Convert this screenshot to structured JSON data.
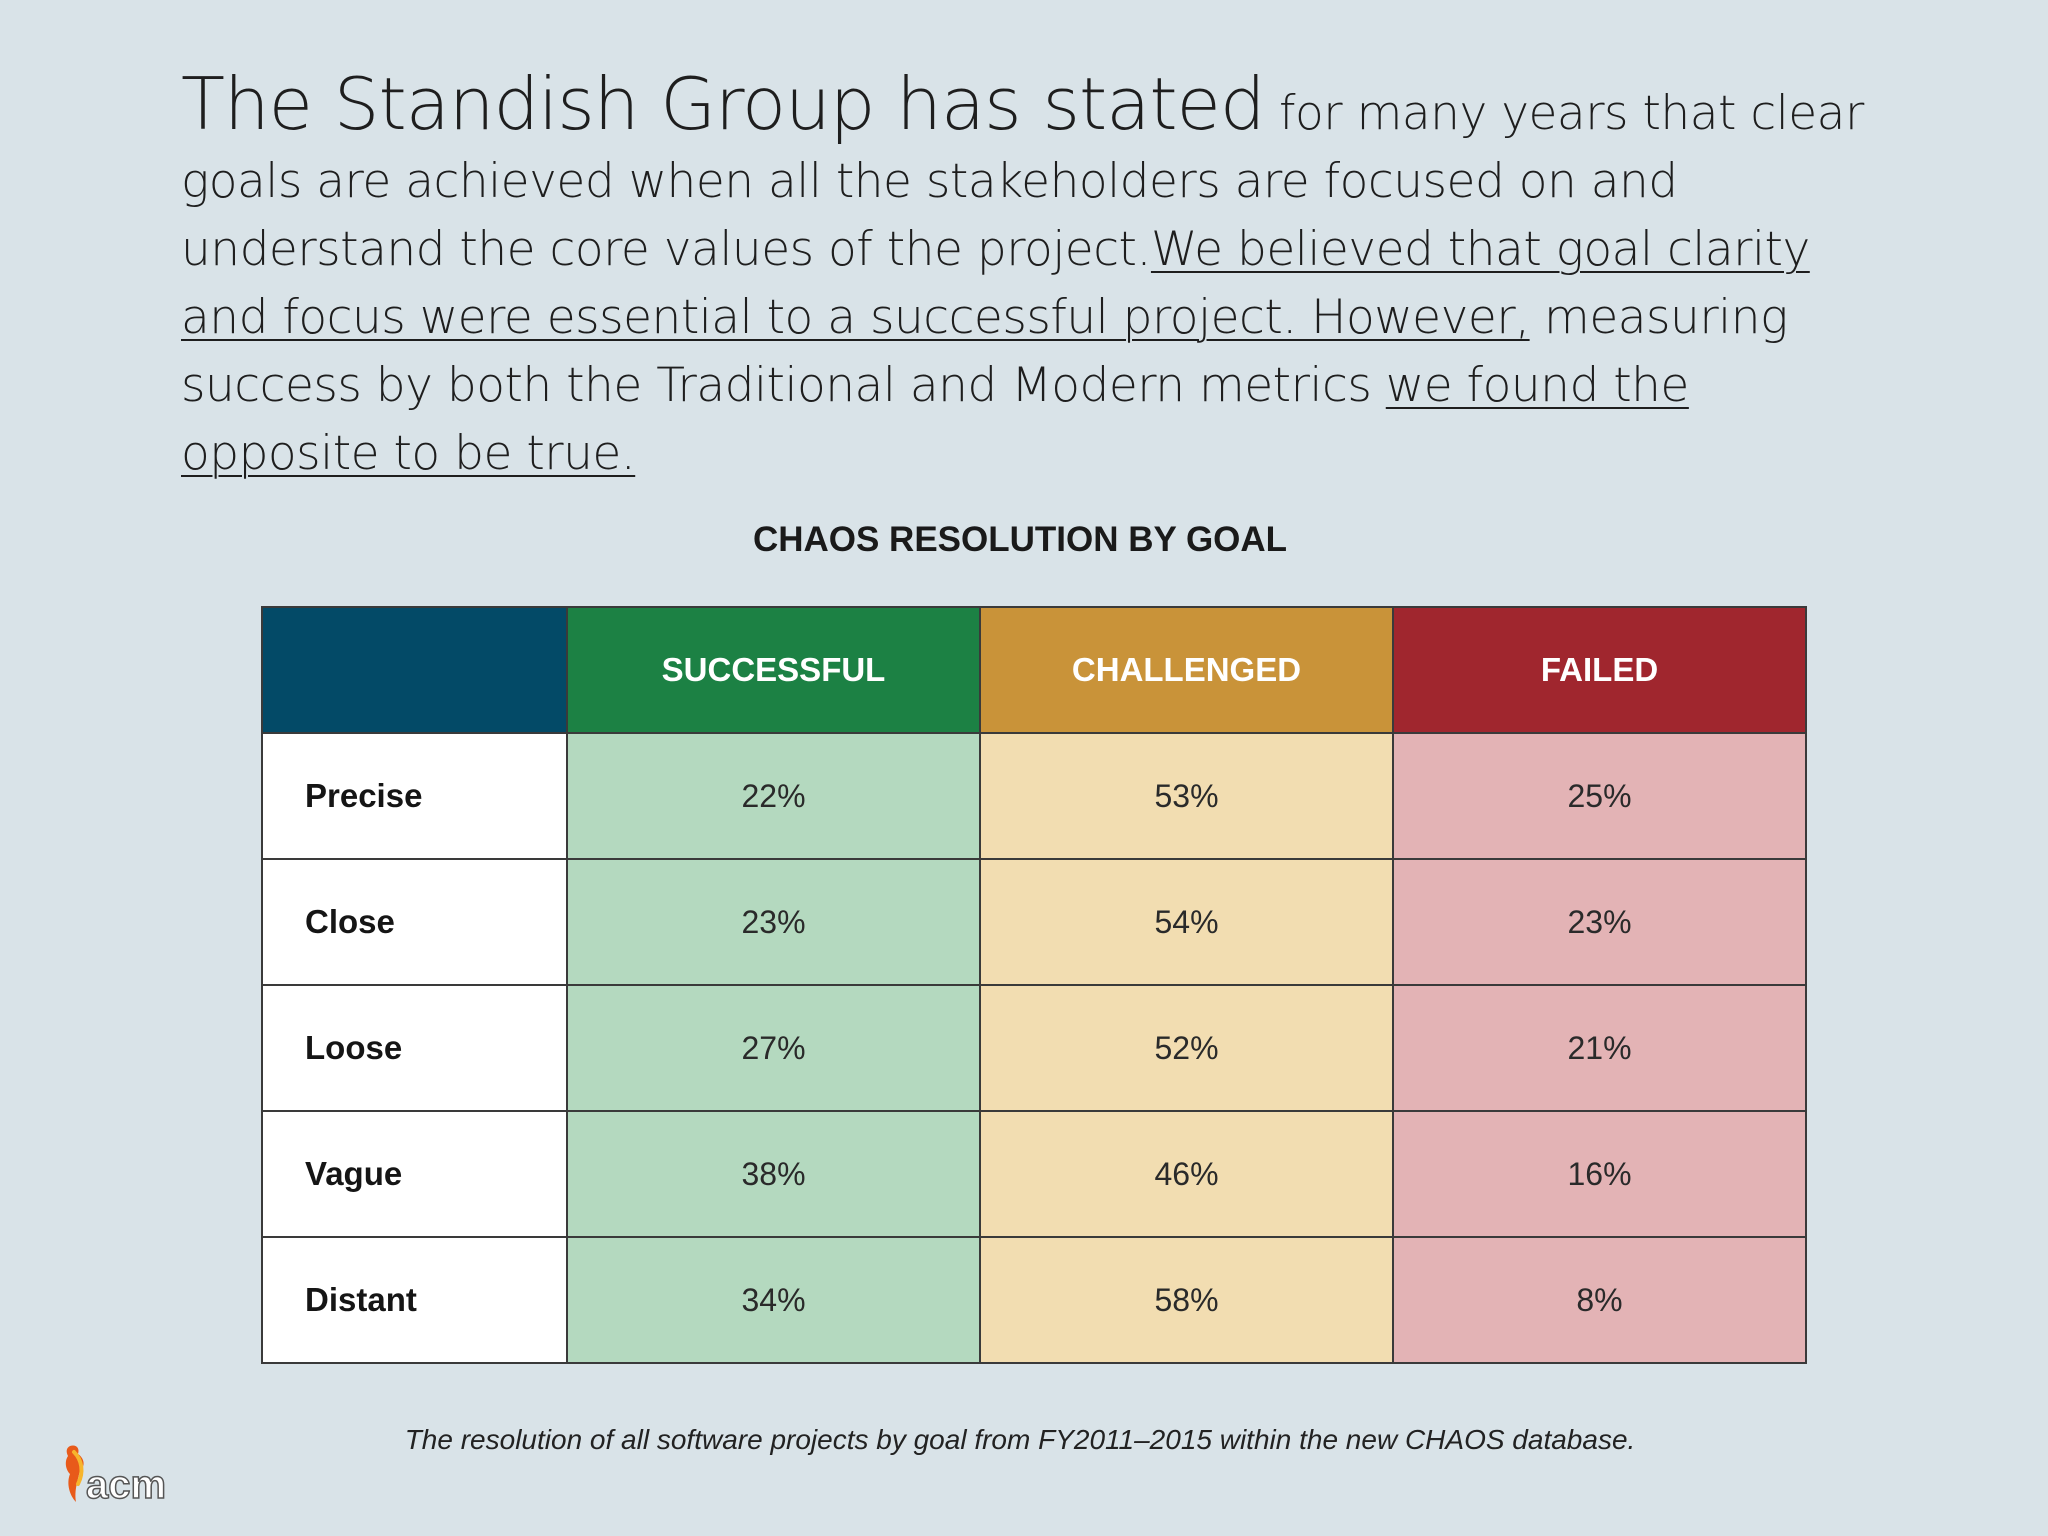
{
  "intro": {
    "lead": "The Standish Group has stated",
    "part1": " for many years that clear goals are achieved when all the stakeholders are focused on and understand the core values of the project.",
    "underline1": "We believed that goal clarity and focus were essential to a successful project. However,",
    "part2": " measuring success by both the Traditional and Modern metrics ",
    "underline2": "we found the opposite to be true."
  },
  "logo": {
    "text": "acm",
    "icon": "acm-logo-icon"
  },
  "colors": {
    "corner_header": "#034a67",
    "successful_header": "#1c8144",
    "challenged_header": "#c99339",
    "failed_header": "#a0262e",
    "successful_cell": "#b4d9bf",
    "challenged_cell": "#f2ddb1",
    "failed_cell": "#e3b3b5"
  },
  "chart_data": {
    "type": "table",
    "title": "CHAOS RESOLUTION BY GOAL",
    "columns": [
      "SUCCESSFUL",
      "CHALLENGED",
      "FAILED"
    ],
    "rows": [
      {
        "label": "Precise",
        "values": [
          "22%",
          "53%",
          "25%"
        ]
      },
      {
        "label": "Close",
        "values": [
          "23%",
          "54%",
          "23%"
        ]
      },
      {
        "label": "Loose",
        "values": [
          "27%",
          "52%",
          "21%"
        ]
      },
      {
        "label": "Vague",
        "values": [
          "38%",
          "46%",
          "16%"
        ]
      },
      {
        "label": "Distant",
        "values": [
          "34%",
          "58%",
          "8%"
        ]
      }
    ],
    "caption": "The resolution of all software projects by goal from FY2011–2015 within the new CHAOS database."
  }
}
